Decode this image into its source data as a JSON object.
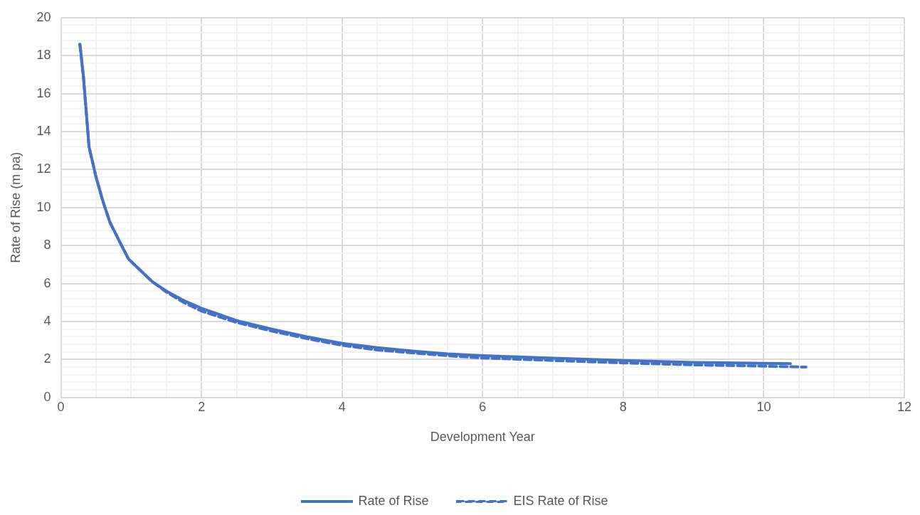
{
  "chart_data": {
    "type": "line",
    "xlabel": "Development Year",
    "ylabel": "Rate of Rise (m pa)",
    "xlim": [
      0,
      12
    ],
    "ylim": [
      0,
      20
    ],
    "xticks": [
      0,
      {
        "value": 0.5,
        "label": null
      },
      {
        "value": 1,
        "label": null
      },
      {
        "value": 1.5,
        "label": null
      },
      2,
      {
        "value": 2.5,
        "label": null
      },
      {
        "value": 3,
        "label": null
      },
      {
        "value": 3.5,
        "label": null
      },
      4,
      {
        "value": 4.5,
        "label": null
      },
      {
        "value": 5,
        "label": null
      },
      {
        "value": 5.5,
        "label": null
      },
      6,
      {
        "value": 6.5,
        "label": null
      },
      {
        "value": 7,
        "label": null
      },
      {
        "value": 7.5,
        "label": null
      },
      8,
      {
        "value": 8.5,
        "label": null
      },
      {
        "value": 9,
        "label": null
      },
      {
        "value": 9.5,
        "label": null
      },
      10,
      {
        "value": 10.5,
        "label": null
      },
      {
        "value": 11,
        "label": null
      },
      {
        "value": 11.5,
        "label": null
      },
      12
    ],
    "yticks": [
      0,
      {
        "value": 0.4,
        "label": null
      },
      {
        "value": 0.8,
        "label": null
      },
      {
        "value": 1.2,
        "label": null
      },
      {
        "value": 1.6,
        "label": null
      },
      2,
      {
        "value": 2.4,
        "label": null
      },
      {
        "value": 2.8,
        "label": null
      },
      {
        "value": 3.2,
        "label": null
      },
      {
        "value": 3.6,
        "label": null
      },
      4,
      {
        "value": 4.4,
        "label": null
      },
      {
        "value": 4.8,
        "label": null
      },
      {
        "value": 5.2,
        "label": null
      },
      {
        "value": 5.6,
        "label": null
      },
      6,
      {
        "value": 6.4,
        "label": null
      },
      {
        "value": 6.8,
        "label": null
      },
      {
        "value": 7.2,
        "label": null
      },
      {
        "value": 7.6,
        "label": null
      },
      8,
      {
        "value": 8.4,
        "label": null
      },
      {
        "value": 8.8,
        "label": null
      },
      {
        "value": 9.2,
        "label": null
      },
      {
        "value": 9.6,
        "label": null
      },
      10,
      {
        "value": 10.4,
        "label": null
      },
      {
        "value": 10.8,
        "label": null
      },
      {
        "value": 11.2,
        "label": null
      },
      {
        "value": 11.6,
        "label": null
      },
      12,
      {
        "value": 12.4,
        "label": null
      },
      {
        "value": 12.8,
        "label": null
      },
      {
        "value": 13.2,
        "label": null
      },
      {
        "value": 13.6,
        "label": null
      },
      14,
      {
        "value": 14.4,
        "label": null
      },
      {
        "value": 14.8,
        "label": null
      },
      {
        "value": 15.2,
        "label": null
      },
      {
        "value": 15.6,
        "label": null
      },
      16,
      {
        "value": 16.4,
        "label": null
      },
      {
        "value": 16.8,
        "label": null
      },
      {
        "value": 17.2,
        "label": null
      },
      {
        "value": 17.6,
        "label": null
      },
      18,
      {
        "value": 18.4,
        "label": null
      },
      {
        "value": 18.8,
        "label": null
      },
      {
        "value": 19.2,
        "label": null
      },
      {
        "value": 19.6,
        "label": null
      },
      20
    ],
    "grid": true,
    "legend": "bottom",
    "marker": "none",
    "series": [
      {
        "name": "Rate of Rise",
        "color": "#4472c4",
        "line_style": "solid",
        "x": [
          0.27,
          0.32,
          0.4,
          0.5,
          0.6,
          0.7,
          0.85,
          0.96,
          1.1,
          1.3,
          1.5,
          1.75,
          2,
          2.5,
          3,
          3.5,
          4,
          4.5,
          5,
          5.5,
          6,
          7,
          8,
          9,
          10,
          10.38
        ],
        "values": [
          18.6,
          16.9,
          13.2,
          11.6,
          10.3,
          9.2,
          8.1,
          7.3,
          6.8,
          6.1,
          5.6,
          5.1,
          4.7,
          4.05,
          3.6,
          3.2,
          2.85,
          2.62,
          2.45,
          2.3,
          2.2,
          2.07,
          1.95,
          1.85,
          1.8,
          1.78
        ]
      },
      {
        "name": "EIS Rate of Rise",
        "color": "#4472c4",
        "line_style": "dashed",
        "x": [
          0.27,
          0.32,
          0.4,
          0.5,
          0.6,
          0.7,
          0.85,
          0.96,
          1.1,
          1.3,
          1.5,
          1.75,
          2,
          2.5,
          3,
          3.5,
          4,
          4.5,
          5,
          5.5,
          6,
          7,
          8,
          9,
          10,
          10.6
        ],
        "values": [
          18.6,
          16.9,
          13.2,
          11.6,
          10.3,
          9.2,
          8.1,
          7.3,
          6.8,
          6.1,
          5.55,
          5.0,
          4.55,
          3.95,
          3.5,
          3.1,
          2.75,
          2.5,
          2.35,
          2.2,
          2.08,
          1.95,
          1.82,
          1.72,
          1.65,
          1.6
        ]
      }
    ]
  }
}
